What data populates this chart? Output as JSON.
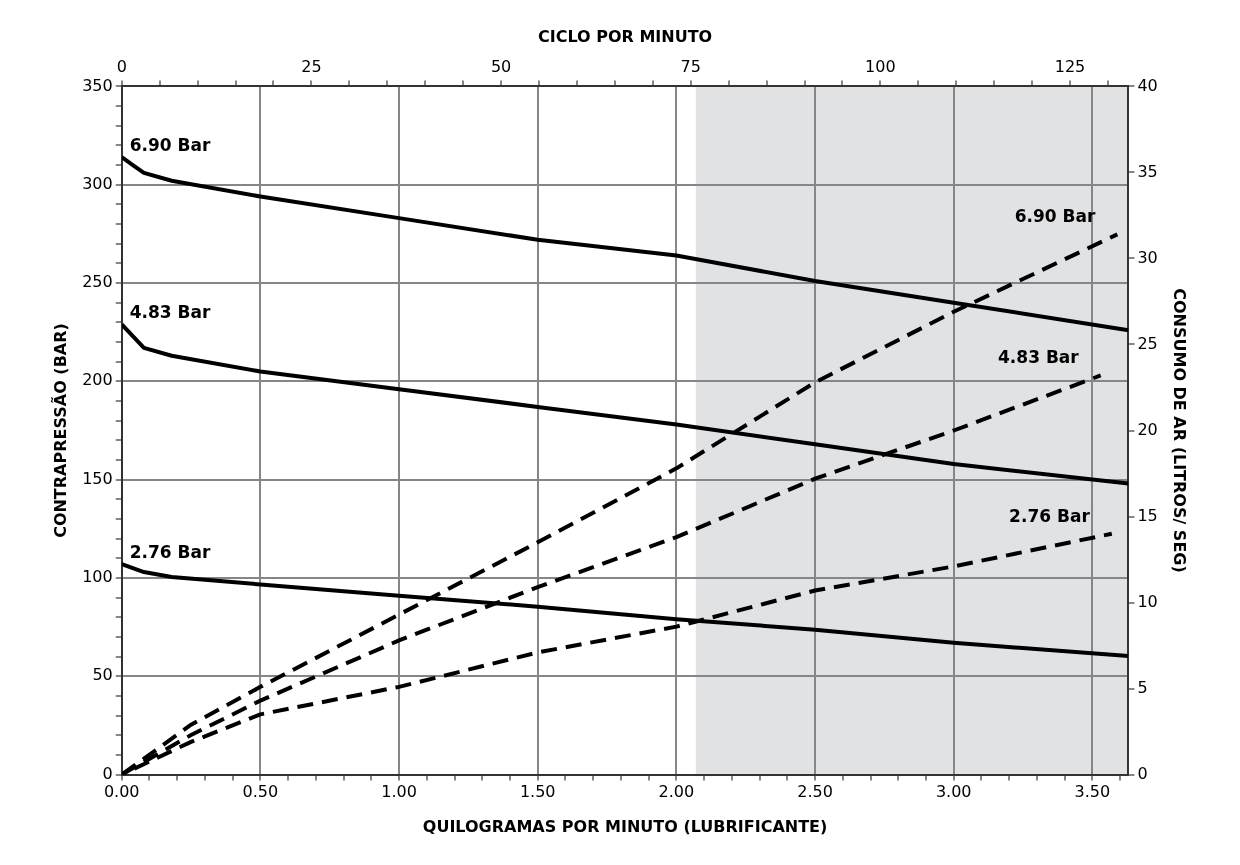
{
  "chart_data": {
    "type": "line",
    "xlabel": "QUILOGRAMAS POR MINUTO (LUBRIFICANTE)",
    "x2label": "CICLO POR MINUTO",
    "ylabel": "CONTRAPRESSÃO (BAR)",
    "y2label": "CONSUMO DE AR (LITROS/ SEG)",
    "xlim": [
      0,
      3.63
    ],
    "xticks": [
      {
        "value": 0,
        "label": "0.00"
      },
      {
        "value": 0.1,
        "label": null
      },
      {
        "value": 0.2,
        "label": null
      },
      {
        "value": 0.3,
        "label": null
      },
      {
        "value": 0.4,
        "label": null
      },
      {
        "value": 0.5,
        "label": "0.50"
      },
      {
        "value": 0.6,
        "label": null
      },
      {
        "value": 0.7,
        "label": null
      },
      {
        "value": 0.8,
        "label": null
      },
      {
        "value": 0.9,
        "label": null
      },
      {
        "value": 1,
        "label": "1.00"
      },
      {
        "value": 1.1,
        "label": null
      },
      {
        "value": 1.2,
        "label": null
      },
      {
        "value": 1.3,
        "label": null
      },
      {
        "value": 1.4,
        "label": null
      },
      {
        "value": 1.5,
        "label": "1.50"
      },
      {
        "value": 1.6,
        "label": null
      },
      {
        "value": 1.7,
        "label": null
      },
      {
        "value": 1.8,
        "label": null
      },
      {
        "value": 1.9,
        "label": null
      },
      {
        "value": 2,
        "label": "2.00"
      },
      {
        "value": 2.1,
        "label": null
      },
      {
        "value": 2.2,
        "label": null
      },
      {
        "value": 2.3,
        "label": null
      },
      {
        "value": 2.4,
        "label": null
      },
      {
        "value": 2.5,
        "label": "2.50"
      },
      {
        "value": 2.6,
        "label": null
      },
      {
        "value": 2.7,
        "label": null
      },
      {
        "value": 2.8,
        "label": null
      },
      {
        "value": 2.9,
        "label": null
      },
      {
        "value": 3,
        "label": "3.00"
      },
      {
        "value": 3.1,
        "label": null
      },
      {
        "value": 3.2,
        "label": null
      },
      {
        "value": 3.3,
        "label": null
      },
      {
        "value": 3.4,
        "label": null
      },
      {
        "value": 3.5,
        "label": "3.50"
      },
      {
        "value": 3.6,
        "label": null
      }
    ],
    "x2lim": [
      0,
      132.7
    ],
    "x2ticks": [
      0,
      {
        "value": 5,
        "label": null
      },
      {
        "value": 10,
        "label": null
      },
      {
        "value": 15,
        "label": null
      },
      {
        "value": 20,
        "label": null
      },
      25,
      {
        "value": 30,
        "label": null
      },
      {
        "value": 35,
        "label": null
      },
      {
        "value": 40,
        "label": null
      },
      {
        "value": 45,
        "label": null
      },
      50,
      {
        "value": 55,
        "label": null
      },
      {
        "value": 60,
        "label": null
      },
      {
        "value": 65,
        "label": null
      },
      {
        "value": 70,
        "label": null
      },
      75,
      {
        "value": 80,
        "label": null
      },
      {
        "value": 85,
        "label": null
      },
      {
        "value": 90,
        "label": null
      },
      {
        "value": 95,
        "label": null
      },
      100,
      {
        "value": 105,
        "label": null
      },
      {
        "value": 110,
        "label": null
      },
      {
        "value": 115,
        "label": null
      },
      {
        "value": 120,
        "label": null
      },
      125,
      {
        "value": 130,
        "label": null
      }
    ],
    "ylim": [
      0,
      350
    ],
    "yticks": [
      0,
      {
        "value": 10,
        "label": null
      },
      {
        "value": 20,
        "label": null
      },
      {
        "value": 30,
        "label": null
      },
      {
        "value": 40,
        "label": null
      },
      50,
      {
        "value": 60,
        "label": null
      },
      {
        "value": 70,
        "label": null
      },
      {
        "value": 80,
        "label": null
      },
      {
        "value": 90,
        "label": null
      },
      100,
      {
        "value": 110,
        "label": null
      },
      {
        "value": 120,
        "label": null
      },
      {
        "value": 130,
        "label": null
      },
      {
        "value": 140,
        "label": null
      },
      150,
      {
        "value": 160,
        "label": null
      },
      {
        "value": 170,
        "label": null
      },
      {
        "value": 180,
        "label": null
      },
      {
        "value": 190,
        "label": null
      },
      200,
      {
        "value": 210,
        "label": null
      },
      {
        "value": 220,
        "label": null
      },
      {
        "value": 230,
        "label": null
      },
      {
        "value": 240,
        "label": null
      },
      250,
      {
        "value": 260,
        "label": null
      },
      {
        "value": 270,
        "label": null
      },
      {
        "value": 280,
        "label": null
      },
      {
        "value": 290,
        "label": null
      },
      300,
      {
        "value": 310,
        "label": null
      },
      {
        "value": 320,
        "label": null
      },
      {
        "value": 330,
        "label": null
      },
      {
        "value": 340,
        "label": null
      },
      350
    ],
    "y2lim": [
      0,
      40
    ],
    "y2ticks": [
      0,
      5,
      10,
      15,
      20,
      25,
      30,
      35,
      40
    ],
    "grid": true,
    "legend": false,
    "marker": "none",
    "bands": [
      {
        "axis": "x",
        "from": 2.07,
        "to": 3.63,
        "color": "#e1e2e4"
      }
    ],
    "series": [
      {
        "name": "6.90 Bar",
        "color": "#000000",
        "line_style": "solid",
        "x": [
          0,
          0.04,
          0.08,
          0.18,
          0.5,
          1,
          1.5,
          2,
          2.5,
          3,
          3.63
        ],
        "values": [
          314,
          310,
          306,
          302,
          294,
          283,
          272,
          264,
          251,
          240,
          226
        ]
      },
      {
        "name": "4.83 Bar",
        "color": "#000000",
        "line_style": "solid",
        "x": [
          0,
          0.04,
          0.08,
          0.18,
          0.5,
          1,
          1.5,
          2,
          2.5,
          3,
          3.63
        ],
        "values": [
          229,
          223,
          217,
          213,
          205,
          196,
          187,
          178,
          168,
          158,
          148
        ]
      },
      {
        "name": "2.76 Bar",
        "color": "#000000",
        "line_style": "solid",
        "x": [
          0,
          0.04,
          0.08,
          0.18,
          0.5,
          1,
          1.5,
          2,
          2.5,
          3,
          3.63
        ],
        "values": [
          107,
          105,
          103,
          100.5,
          96.7,
          91,
          85.4,
          79,
          73.7,
          67,
          60.3
        ]
      },
      {
        "name": "6.90 Bar",
        "color": "#000000",
        "line_style": "dashed",
        "axis": "y2",
        "x": [
          0,
          0.25,
          0.5,
          1,
          1.5,
          2,
          2.5,
          3,
          3.59
        ],
        "values": [
          0,
          2.9,
          5.1,
          9.3,
          13.5,
          17.8,
          22.8,
          26.9,
          31.4
        ]
      },
      {
        "name": "4.83 Bar",
        "color": "#000000",
        "line_style": "dashed",
        "axis": "y2",
        "x": [
          0,
          0.25,
          0.5,
          1,
          1.5,
          2,
          2.5,
          3,
          3.53
        ],
        "values": [
          0,
          2.3,
          4.3,
          7.8,
          10.9,
          13.8,
          17.2,
          20,
          23.2
        ]
      },
      {
        "name": "2.76 Bar",
        "color": "#000000",
        "line_style": "dashed",
        "axis": "y2",
        "x": [
          0,
          0.25,
          0.5,
          1,
          1.5,
          2,
          2.5,
          3,
          3.57
        ],
        "values": [
          0,
          1.9,
          3.5,
          5.1,
          7.1,
          8.6,
          10.7,
          12.1,
          14
        ]
      }
    ]
  }
}
